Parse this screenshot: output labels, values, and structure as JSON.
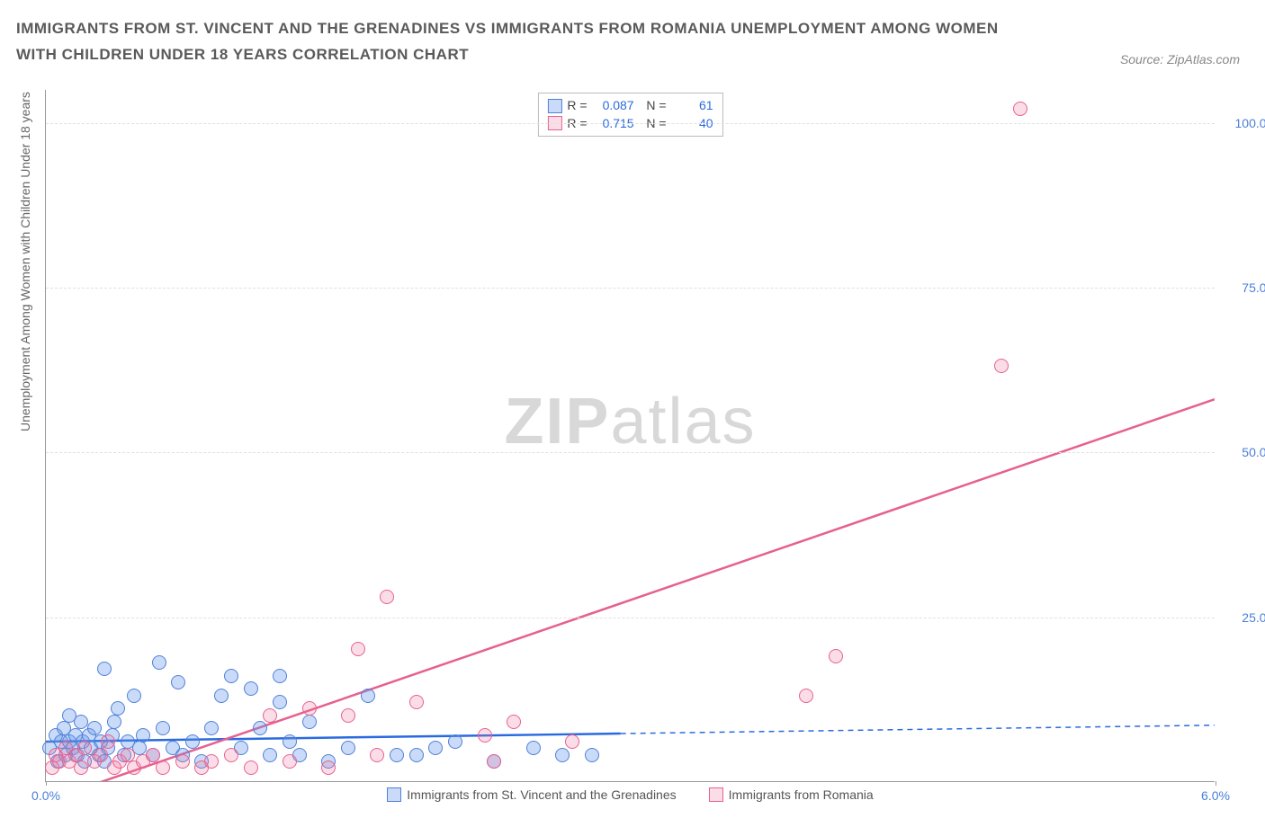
{
  "title_line1": "IMMIGRANTS FROM ST. VINCENT AND THE GRENADINES VS IMMIGRANTS FROM ROMANIA UNEMPLOYMENT AMONG WOMEN",
  "title_line2": "WITH CHILDREN UNDER 18 YEARS CORRELATION CHART",
  "source_label": "Source: ZipAtlas.com",
  "ylabel": "Unemployment Among Women with Children Under 18 years",
  "watermark_a": "ZIP",
  "watermark_b": "atlas",
  "chart": {
    "type": "scatter",
    "xlim": [
      0,
      6.0
    ],
    "ylim": [
      0,
      105
    ],
    "xticks": [
      {
        "v": 0.0,
        "label": "0.0%"
      },
      {
        "v": 6.0,
        "label": "6.0%"
      }
    ],
    "yticks": [
      {
        "v": 25,
        "label": "25.0%"
      },
      {
        "v": 50,
        "label": "50.0%"
      },
      {
        "v": 75,
        "label": "75.0%"
      },
      {
        "v": 100,
        "label": "100.0%"
      }
    ],
    "grid_color": "#e0e0e0",
    "axis_color": "#999999",
    "background_color": "#ffffff",
    "tick_color": "#4a7fd8",
    "marker_radius": 8,
    "series": [
      {
        "id": "blue",
        "label": "Immigrants from St. Vincent and the Grenadines",
        "fill": "rgba(101,153,235,0.35)",
        "stroke": "#5080d8",
        "line_color": "#2a6ae0",
        "line_width": 2.5,
        "R": "0.087",
        "N": "61",
        "regression": {
          "x1": 0.0,
          "y1": 6.0,
          "x2": 6.0,
          "y2": 8.5,
          "solid_until_x": 2.95
        },
        "points": [
          [
            0.02,
            5
          ],
          [
            0.05,
            7
          ],
          [
            0.06,
            3
          ],
          [
            0.08,
            6
          ],
          [
            0.09,
            8
          ],
          [
            0.1,
            4
          ],
          [
            0.12,
            6
          ],
          [
            0.12,
            10
          ],
          [
            0.14,
            5
          ],
          [
            0.15,
            7
          ],
          [
            0.16,
            4
          ],
          [
            0.18,
            9
          ],
          [
            0.19,
            6
          ],
          [
            0.2,
            3
          ],
          [
            0.22,
            7
          ],
          [
            0.23,
            5
          ],
          [
            0.25,
            8
          ],
          [
            0.27,
            4
          ],
          [
            0.28,
            6
          ],
          [
            0.3,
            3
          ],
          [
            0.3,
            17
          ],
          [
            0.32,
            5
          ],
          [
            0.34,
            7
          ],
          [
            0.35,
            9
          ],
          [
            0.37,
            11
          ],
          [
            0.4,
            4
          ],
          [
            0.42,
            6
          ],
          [
            0.45,
            13
          ],
          [
            0.48,
            5
          ],
          [
            0.5,
            7
          ],
          [
            0.55,
            4
          ],
          [
            0.58,
            18
          ],
          [
            0.6,
            8
          ],
          [
            0.65,
            5
          ],
          [
            0.68,
            15
          ],
          [
            0.7,
            4
          ],
          [
            0.75,
            6
          ],
          [
            0.8,
            3
          ],
          [
            0.85,
            8
          ],
          [
            0.9,
            13
          ],
          [
            0.95,
            16
          ],
          [
            1.0,
            5
          ],
          [
            1.05,
            14
          ],
          [
            1.1,
            8
          ],
          [
            1.15,
            4
          ],
          [
            1.2,
            12
          ],
          [
            1.2,
            16
          ],
          [
            1.25,
            6
          ],
          [
            1.3,
            4
          ],
          [
            1.35,
            9
          ],
          [
            1.45,
            3
          ],
          [
            1.55,
            5
          ],
          [
            1.65,
            13
          ],
          [
            1.8,
            4
          ],
          [
            1.9,
            4
          ],
          [
            2.0,
            5
          ],
          [
            2.1,
            6
          ],
          [
            2.3,
            3
          ],
          [
            2.5,
            5
          ],
          [
            2.65,
            4
          ],
          [
            2.8,
            4
          ]
        ]
      },
      {
        "id": "pink",
        "label": "Immigrants from Romania",
        "fill": "rgba(240,120,160,0.25)",
        "stroke": "#e86090",
        "line_color": "#e66090",
        "line_width": 2.5,
        "R": "0.715",
        "N": "40",
        "regression": {
          "x1": 0.0,
          "y1": -3.0,
          "x2": 6.0,
          "y2": 58.0
        },
        "points": [
          [
            0.03,
            2
          ],
          [
            0.05,
            4
          ],
          [
            0.07,
            3
          ],
          [
            0.1,
            5
          ],
          [
            0.12,
            3
          ],
          [
            0.15,
            4
          ],
          [
            0.18,
            2
          ],
          [
            0.2,
            5
          ],
          [
            0.25,
            3
          ],
          [
            0.28,
            4
          ],
          [
            0.32,
            6
          ],
          [
            0.35,
            2
          ],
          [
            0.38,
            3
          ],
          [
            0.42,
            4
          ],
          [
            0.45,
            2
          ],
          [
            0.5,
            3
          ],
          [
            0.55,
            4
          ],
          [
            0.6,
            2
          ],
          [
            0.7,
            3
          ],
          [
            0.8,
            2
          ],
          [
            0.85,
            3
          ],
          [
            0.95,
            4
          ],
          [
            1.05,
            2
          ],
          [
            1.15,
            10
          ],
          [
            1.25,
            3
          ],
          [
            1.35,
            11
          ],
          [
            1.45,
            2
          ],
          [
            1.55,
            10
          ],
          [
            1.6,
            20
          ],
          [
            1.7,
            4
          ],
          [
            1.75,
            28
          ],
          [
            1.9,
            12
          ],
          [
            2.25,
            7
          ],
          [
            2.3,
            3
          ],
          [
            2.4,
            9
          ],
          [
            2.7,
            6
          ],
          [
            3.9,
            13
          ],
          [
            4.05,
            19
          ],
          [
            4.9,
            63
          ],
          [
            5.0,
            102
          ]
        ]
      }
    ],
    "bottom_legend": [
      {
        "label": "Immigrants from St. Vincent and the Grenadines",
        "cls": "blue"
      },
      {
        "label": "Immigrants from Romania",
        "cls": "pink"
      }
    ]
  }
}
